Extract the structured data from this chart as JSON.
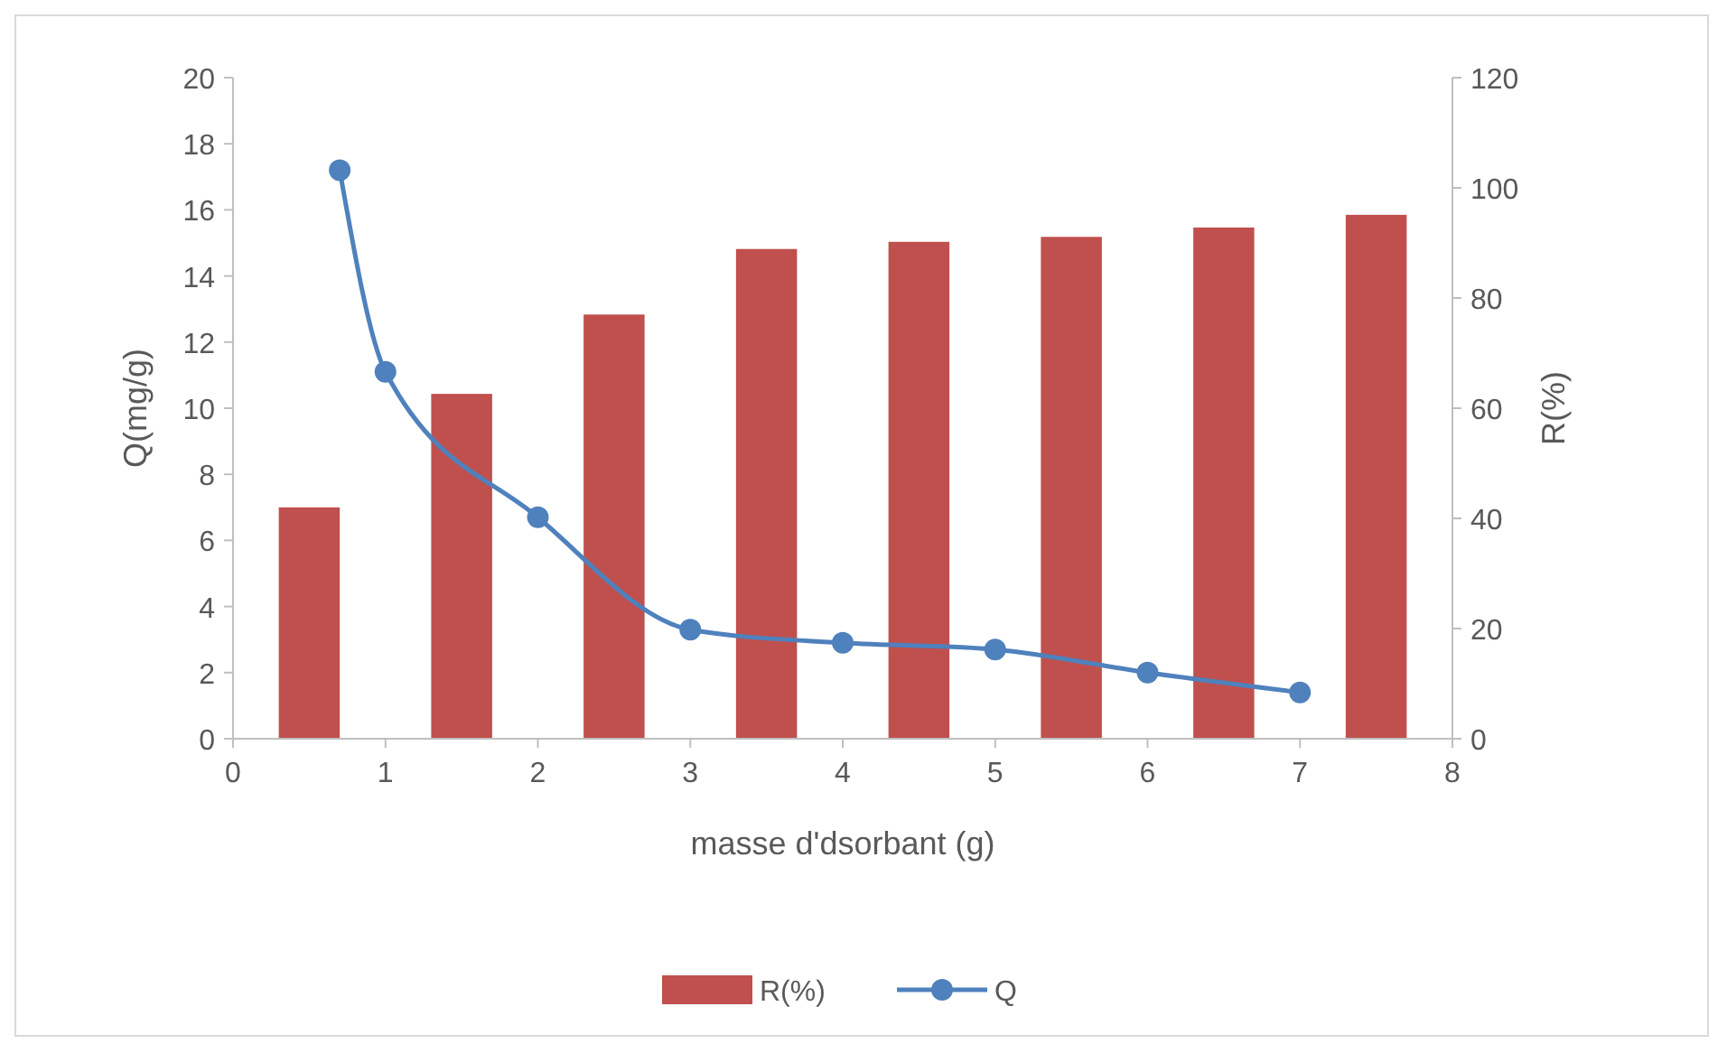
{
  "chart_data": {
    "type": "bar",
    "xlabel": "masse d'dsorbant (g)",
    "ylabel": "Q(mg/g)",
    "y2label": "R(%)",
    "xlim": [
      0,
      8
    ],
    "xticks": [
      0,
      1,
      2,
      3,
      4,
      5,
      6,
      7,
      8
    ],
    "ylim": [
      0,
      20
    ],
    "yticks": [
      0,
      2,
      4,
      6,
      8,
      10,
      12,
      14,
      16,
      18,
      20
    ],
    "y2lim": [
      0,
      120
    ],
    "y2ticks": [
      0,
      20,
      40,
      60,
      80,
      100,
      120
    ],
    "grid": false,
    "legend": "bottom",
    "series": [
      {
        "name": "R(%)",
        "axis": "y2",
        "color": "#c0504d",
        "x": [
          0.5,
          1.5,
          2.5,
          3.5,
          4.5,
          5.5,
          6.5,
          7.5
        ],
        "values": [
          42,
          62.6,
          77,
          88.9,
          90.2,
          91.1,
          92.8,
          95.1
        ]
      },
      {
        "name": "Q",
        "type": "line",
        "axis": "y",
        "color": "#4f81bd",
        "marker": "circle",
        "line_style": "solid",
        "x": [
          0.7,
          1,
          2,
          3,
          4,
          5,
          6,
          7
        ],
        "values": [
          17.2,
          11.1,
          6.7,
          3.3,
          2.9,
          2.7,
          2.0,
          1.4
        ]
      }
    ]
  }
}
